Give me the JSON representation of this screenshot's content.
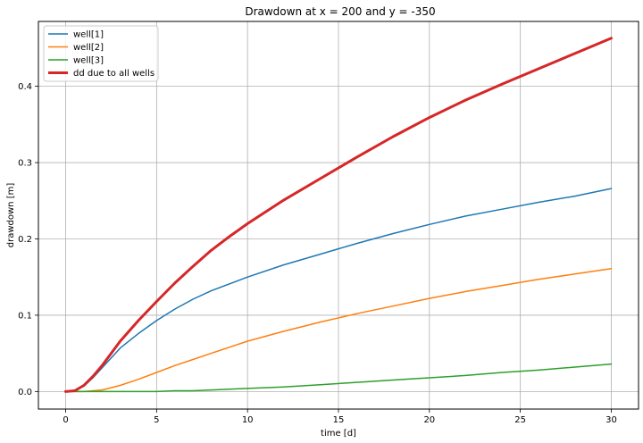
{
  "chart_data": {
    "type": "line",
    "title": "Drawdown at x = 200 and y = -350",
    "xlabel": "time [d]",
    "ylabel": "drawdown [m]",
    "xlim": [
      -1.5,
      31.5
    ],
    "ylim": [
      -0.023,
      0.485
    ],
    "xticks": [
      0,
      5,
      10,
      15,
      20,
      25,
      30
    ],
    "xtick_labels": [
      "0",
      "5",
      "10",
      "15",
      "20",
      "25",
      "30"
    ],
    "yticks": [
      0.0,
      0.1,
      0.2,
      0.3,
      0.4
    ],
    "ytick_labels": [
      "0.0",
      "0.1",
      "0.2",
      "0.3",
      "0.4"
    ],
    "grid": true,
    "legend_position": "top-left",
    "x": [
      0,
      0.5,
      1,
      1.5,
      2,
      2.5,
      3,
      4,
      5,
      6,
      7,
      8,
      9,
      10,
      12,
      14,
      16,
      18,
      20,
      22,
      24,
      26,
      28,
      30
    ],
    "series": [
      {
        "name": "well[1]",
        "color": "#1f77b4",
        "width": 1.5,
        "values": [
          0.0,
          0.001,
          0.007,
          0.018,
          0.031,
          0.044,
          0.057,
          0.076,
          0.093,
          0.108,
          0.121,
          0.132,
          0.141,
          0.15,
          0.166,
          0.18,
          0.194,
          0.207,
          0.219,
          0.23,
          0.239,
          0.248,
          0.256,
          0.266
        ]
      },
      {
        "name": "well[2]",
        "color": "#ff7f0e",
        "width": 1.5,
        "values": [
          0.0,
          0.0,
          0.0,
          0.001,
          0.002,
          0.005,
          0.008,
          0.016,
          0.025,
          0.034,
          0.042,
          0.05,
          0.058,
          0.066,
          0.079,
          0.091,
          0.102,
          0.112,
          0.122,
          0.131,
          0.139,
          0.147,
          0.154,
          0.161
        ]
      },
      {
        "name": "well[3]",
        "color": "#2ca02c",
        "width": 1.5,
        "values": [
          0.0,
          0.0,
          0.0,
          0.0,
          0.0,
          0.0,
          0.0,
          0.0,
          0.0,
          0.001,
          0.001,
          0.002,
          0.003,
          0.004,
          0.006,
          0.009,
          0.012,
          0.015,
          0.018,
          0.021,
          0.025,
          0.028,
          0.032,
          0.036
        ]
      },
      {
        "name": "dd due to all wells",
        "color": "#d62728",
        "width": 3,
        "values": [
          0.0,
          0.001,
          0.008,
          0.02,
          0.034,
          0.05,
          0.066,
          0.093,
          0.118,
          0.142,
          0.164,
          0.185,
          0.203,
          0.22,
          0.251,
          0.279,
          0.307,
          0.334,
          0.359,
          0.382,
          0.403,
          0.423,
          0.443,
          0.463
        ]
      }
    ]
  }
}
